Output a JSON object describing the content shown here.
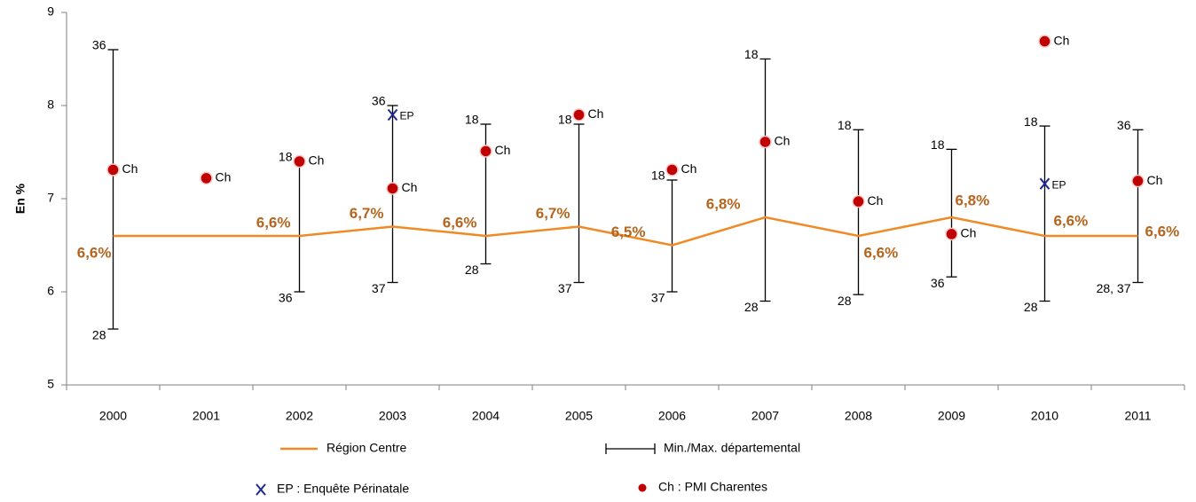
{
  "chart_data": {
    "type": "line",
    "y_label": "En %",
    "categories": [
      "2000",
      "2001",
      "2002",
      "2003",
      "2004",
      "2005",
      "2006",
      "2007",
      "2008",
      "2009",
      "2010",
      "2011"
    ],
    "ylim": [
      5,
      9
    ],
    "yticks": [
      5,
      6,
      7,
      8,
      9
    ],
    "series": [
      {
        "name": "Région Centre",
        "color": "#f08a24",
        "label_color": "#b5651d",
        "values": [
          6.6,
          6.6,
          6.6,
          6.7,
          6.6,
          6.7,
          6.5,
          6.8,
          6.6,
          6.8,
          6.6,
          6.6
        ],
        "value_labels": [
          "6,6%",
          null,
          "6,6%",
          "6,7%",
          "6,6%",
          "6,7%",
          "6,5%",
          "6,8%",
          "6,6%",
          "6,8%",
          "6,6%",
          "6,6%"
        ]
      }
    ],
    "range": {
      "name": "Min./Max. départemental",
      "color": "#000000",
      "min": [
        5.6,
        null,
        6.0,
        6.1,
        6.3,
        6.1,
        6.0,
        5.9,
        5.97,
        6.16,
        5.9,
        6.1
      ],
      "max": [
        8.6,
        null,
        7.4,
        8.0,
        7.8,
        7.8,
        7.2,
        8.5,
        7.74,
        7.53,
        7.78,
        7.74
      ],
      "min_labels": [
        "28",
        null,
        "36",
        "37",
        "28",
        "37",
        "37",
        "28",
        "28",
        "36",
        "28",
        "28, 37"
      ],
      "max_labels": [
        "36",
        null,
        "18",
        "36",
        "18",
        "18",
        "18",
        "18",
        "18",
        "18",
        "18",
        "36"
      ]
    },
    "points": [
      {
        "name": "EP : Enquête Périnatale",
        "label": "EP",
        "marker": "x",
        "color": "#1f2a8f",
        "values": [
          null,
          null,
          null,
          7.9,
          null,
          null,
          null,
          null,
          null,
          null,
          7.16,
          null
        ]
      },
      {
        "name": "Ch : PMI Charentes",
        "label": "Ch",
        "marker": "circle",
        "color": "#c00000",
        "values": [
          7.31,
          7.22,
          7.4,
          7.11,
          7.51,
          7.9,
          7.31,
          7.61,
          6.97,
          6.62,
          8.69,
          7.19
        ]
      }
    ]
  }
}
